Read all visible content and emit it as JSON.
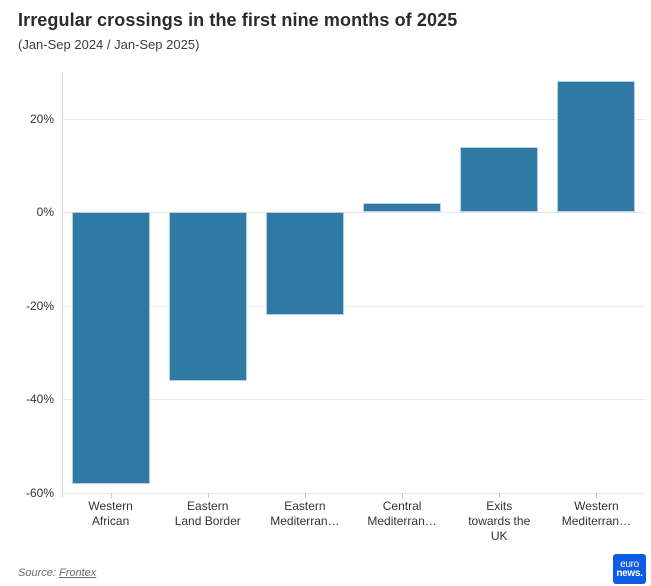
{
  "header": {
    "title": "Irregular crossings in the first nine months of 2025",
    "subtitle": "(Jan-Sep 2024 / Jan-Sep 2025)"
  },
  "chart_data": {
    "type": "bar",
    "title": "Irregular crossings in the first nine months of 2025",
    "subtitle": "(Jan-Sep 2024 / Jan-Sep 2025)",
    "categories": [
      "Western African",
      "Eastern Land Border",
      "Eastern Mediterran…",
      "Central Mediterran…",
      "Exits towards the UK",
      "Western Mediterran…"
    ],
    "category_display_lines": [
      [
        "Western",
        "African"
      ],
      [
        "Eastern",
        "Land Border"
      ],
      [
        "Eastern",
        "Mediterran…"
      ],
      [
        "Central",
        "Mediterran…"
      ],
      [
        "Exits",
        "towards the",
        "UK"
      ],
      [
        "Western",
        "Mediterran…"
      ]
    ],
    "values": [
      -58,
      -36,
      -22,
      2,
      14,
      28
    ],
    "unit": "%",
    "xlabel": "",
    "ylabel": "",
    "ylim": [
      -60,
      30
    ],
    "y_ticks": [
      20,
      0,
      -20,
      -40,
      -60
    ],
    "y_tick_labels": [
      "20%",
      "0%",
      "-20%",
      "-40%",
      "-60%"
    ],
    "grid": true,
    "legend": "none",
    "bar_color": "#2f7aa4",
    "bar_border_color": "#bad2e0"
  },
  "footer": {
    "source_prefix": "Source: ",
    "source_link": "Frontex",
    "logo": {
      "line1": "euro",
      "line2": "news.",
      "color": "#0c5ce6"
    }
  }
}
